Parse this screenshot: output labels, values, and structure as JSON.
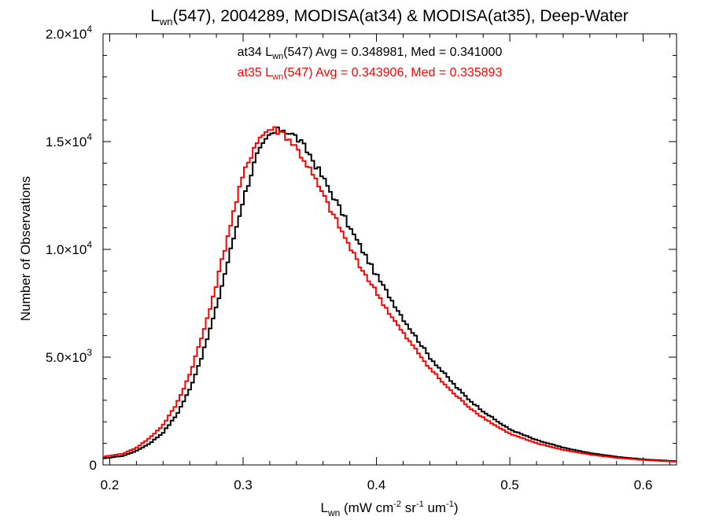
{
  "chart_data": {
    "type": "line",
    "title": {
      "parts": [
        {
          "text": "L",
          "sub": "wn",
          "rest": "(547), 2004289, MODISA(at34) & MODISA(at35), Deep-Water"
        }
      ],
      "full": "Lwn(547), 2004289, MODISA(at34) & MODISA(at35), Deep-Water"
    },
    "xlabel": {
      "base": "L",
      "sub": "wn",
      "units_prefix": " (mW cm",
      "sup1": "-2",
      "mid": " sr",
      "sup2": "-1",
      "mid2": " um",
      "sup3": "-1",
      "end": ")",
      "full": "Lwn (mW cm-2 sr-1 um-1)"
    },
    "ylabel": "Number of Observations",
    "xlim": [
      0.195,
      0.625
    ],
    "ylim": [
      0,
      20000
    ],
    "x_ticks": [
      {
        "value": 0.2,
        "label": "0.2"
      },
      {
        "value": 0.3,
        "label": "0.3"
      },
      {
        "value": 0.4,
        "label": "0.4"
      },
      {
        "value": 0.5,
        "label": "0.5"
      },
      {
        "value": 0.6,
        "label": "0.6"
      }
    ],
    "y_ticks": [
      {
        "value": 0,
        "mant": "0",
        "exp": ""
      },
      {
        "value": 5000,
        "mant": "5.0×10",
        "exp": "3"
      },
      {
        "value": 10000,
        "mant": "1.0×10",
        "exp": "4"
      },
      {
        "value": 15000,
        "mant": "1.5×10",
        "exp": "4"
      },
      {
        "value": 20000,
        "mant": "2.0×10",
        "exp": "4"
      }
    ],
    "annotations": [
      {
        "series": "at34",
        "color": "#000000",
        "pre": "at34 L",
        "sub": "wn",
        "post": "(547) Avg = 0.348981, Med = 0.341000"
      },
      {
        "series": "at35",
        "color": "#ff0000",
        "pre": "at35 L",
        "sub": "wn",
        "post": "(547) Avg = 0.343906, Med = 0.335893"
      }
    ],
    "grid": false,
    "step": true,
    "series": [
      {
        "name": "at34",
        "color": "#000000",
        "points": [
          [
            0.195,
            300
          ],
          [
            0.21,
            420
          ],
          [
            0.22,
            650
          ],
          [
            0.23,
            1000
          ],
          [
            0.24,
            1500
          ],
          [
            0.25,
            2300
          ],
          [
            0.26,
            3500
          ],
          [
            0.27,
            5200
          ],
          [
            0.28,
            7300
          ],
          [
            0.29,
            9800
          ],
          [
            0.3,
            12300
          ],
          [
            0.31,
            14300
          ],
          [
            0.32,
            15300
          ],
          [
            0.33,
            15600
          ],
          [
            0.34,
            15200
          ],
          [
            0.35,
            14400
          ],
          [
            0.36,
            13300
          ],
          [
            0.37,
            12200
          ],
          [
            0.38,
            11000
          ],
          [
            0.39,
            9900
          ],
          [
            0.4,
            8800
          ],
          [
            0.41,
            7800
          ],
          [
            0.42,
            6800
          ],
          [
            0.43,
            5900
          ],
          [
            0.44,
            5000
          ],
          [
            0.45,
            4300
          ],
          [
            0.46,
            3600
          ],
          [
            0.47,
            3000
          ],
          [
            0.48,
            2500
          ],
          [
            0.49,
            2050
          ],
          [
            0.5,
            1650
          ],
          [
            0.52,
            1150
          ],
          [
            0.54,
            800
          ],
          [
            0.56,
            550
          ],
          [
            0.58,
            380
          ],
          [
            0.6,
            260
          ],
          [
            0.625,
            170
          ]
        ]
      },
      {
        "name": "at35",
        "color": "#ff0000",
        "points": [
          [
            0.195,
            380
          ],
          [
            0.21,
            520
          ],
          [
            0.22,
            800
          ],
          [
            0.23,
            1250
          ],
          [
            0.24,
            1850
          ],
          [
            0.25,
            2800
          ],
          [
            0.26,
            4200
          ],
          [
            0.27,
            6100
          ],
          [
            0.28,
            8400
          ],
          [
            0.29,
            11000
          ],
          [
            0.3,
            13400
          ],
          [
            0.31,
            15000
          ],
          [
            0.32,
            15600
          ],
          [
            0.33,
            15400
          ],
          [
            0.34,
            14700
          ],
          [
            0.35,
            13700
          ],
          [
            0.36,
            12500
          ],
          [
            0.37,
            11300
          ],
          [
            0.38,
            10100
          ],
          [
            0.39,
            9000
          ],
          [
            0.4,
            8000
          ],
          [
            0.41,
            7000
          ],
          [
            0.42,
            6100
          ],
          [
            0.43,
            5300
          ],
          [
            0.44,
            4500
          ],
          [
            0.45,
            3800
          ],
          [
            0.46,
            3200
          ],
          [
            0.47,
            2650
          ],
          [
            0.48,
            2200
          ],
          [
            0.49,
            1800
          ],
          [
            0.5,
            1450
          ],
          [
            0.52,
            1000
          ],
          [
            0.54,
            700
          ],
          [
            0.56,
            480
          ],
          [
            0.58,
            330
          ],
          [
            0.6,
            230
          ],
          [
            0.625,
            150
          ]
        ]
      }
    ]
  }
}
